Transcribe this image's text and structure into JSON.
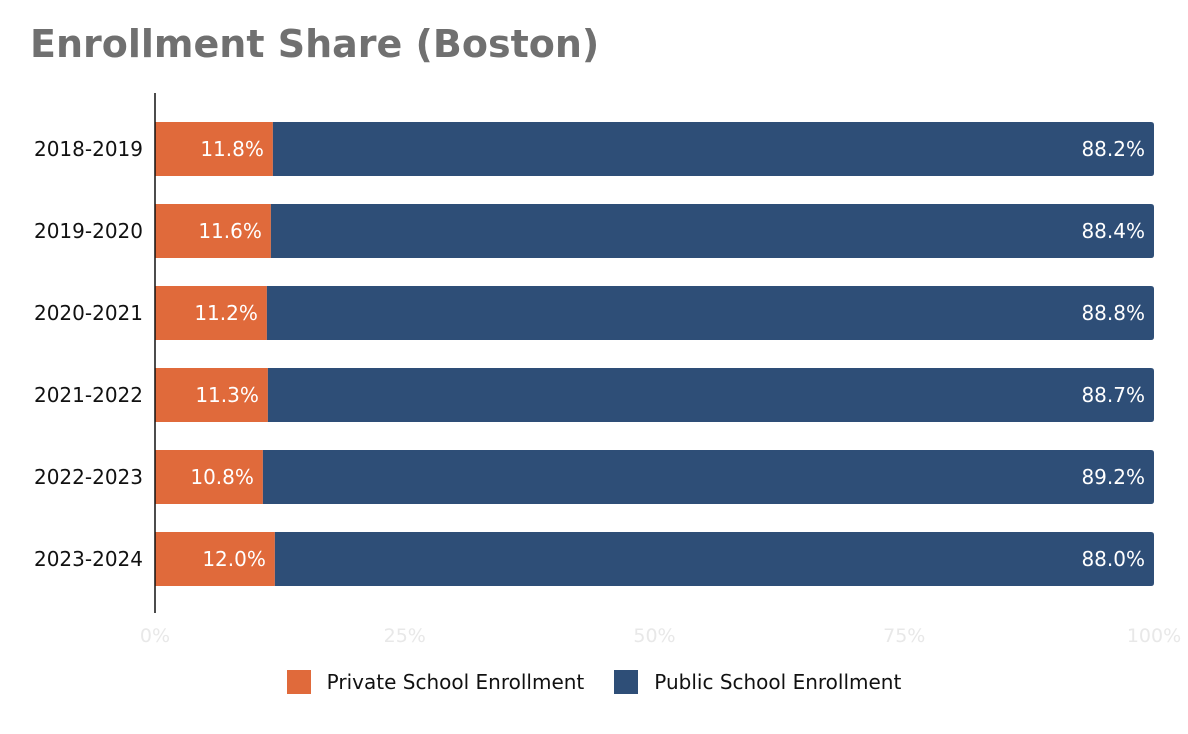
{
  "chart_data": {
    "type": "bar",
    "orientation": "horizontal",
    "stacked": true,
    "title": "Enrollment Share (Boston)",
    "categories": [
      "2018-2019",
      "2019-2020",
      "2020-2021",
      "2021-2022",
      "2022-2023",
      "2023-2024"
    ],
    "series": [
      {
        "name": "Private School Enrollment",
        "color": "#e06a3b",
        "values": [
          11.8,
          11.6,
          11.2,
          11.3,
          10.8,
          12.0
        ],
        "labels": [
          "11.8%",
          "11.6%",
          "11.2%",
          "11.3%",
          "10.8%",
          "12.0%"
        ]
      },
      {
        "name": "Public School Enrollment",
        "color": "#2e4e77",
        "values": [
          88.2,
          88.4,
          88.8,
          88.7,
          89.2,
          88.0
        ],
        "labels": [
          "88.2%",
          "88.4%",
          "88.8%",
          "88.7%",
          "89.2%",
          "88.0%"
        ]
      }
    ],
    "xlim": [
      0,
      100
    ],
    "xticks": [
      0,
      25,
      50,
      75,
      100
    ],
    "xtick_labels": [
      "0%",
      "25%",
      "50%",
      "75%",
      "100%"
    ],
    "xlabel": "",
    "ylabel": "",
    "grid": false,
    "legend_position": "bottom-center"
  }
}
